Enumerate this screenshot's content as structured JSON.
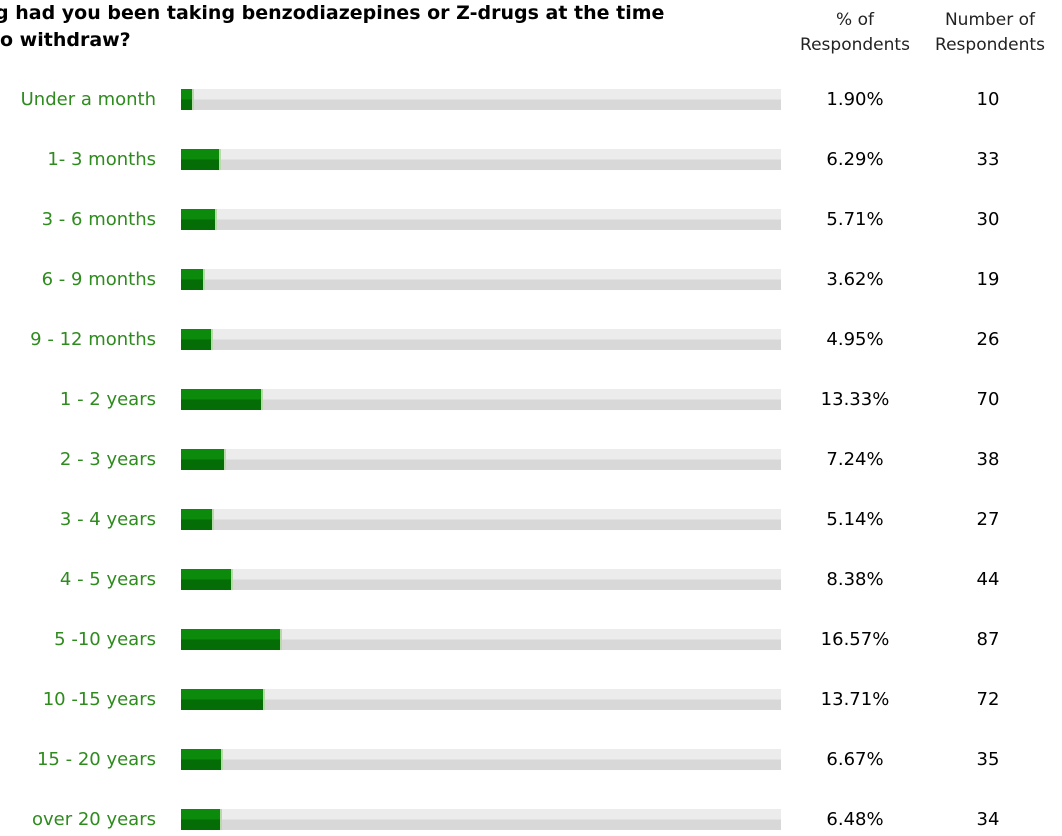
{
  "chart_data": {
    "type": "bar",
    "title": "g had you been taking benzodiazepines or Z-drugs at the time\no withdraw?",
    "column_headers": {
      "percent": "% of\nRespondents",
      "count": "Number of\nRespondents"
    },
    "categories": [
      "Under a month",
      "1- 3 months",
      "3 - 6 months",
      "6 - 9 months",
      "9 - 12 months",
      "1 - 2 years",
      "2 - 3 years",
      "3 - 4 years",
      "4 - 5 years",
      "5 -10 years",
      "10 -15 years",
      "15 - 20 years",
      "over 20 years"
    ],
    "series": [
      {
        "values": [
          1.9,
          6.29,
          5.71,
          3.62,
          4.95,
          13.33,
          7.24,
          5.14,
          8.38,
          16.57,
          13.71,
          6.67,
          6.48
        ]
      }
    ],
    "percent_labels": [
      "1.90%",
      "6.29%",
      "5.71%",
      "3.62%",
      "4.95%",
      "13.33%",
      "7.24%",
      "5.14%",
      "8.38%",
      "16.57%",
      "13.71%",
      "6.67%",
      "6.48%"
    ],
    "counts": [
      "10",
      "33",
      "30",
      "19",
      "26",
      "70",
      "38",
      "27",
      "44",
      "87",
      "72",
      "35",
      "34"
    ],
    "ylim": [
      0,
      100
    ],
    "orientation": "horizontal",
    "colors": {
      "bar": "#0c8a0c",
      "track": "#e6e6e6",
      "label": "#2e8b1e"
    }
  }
}
